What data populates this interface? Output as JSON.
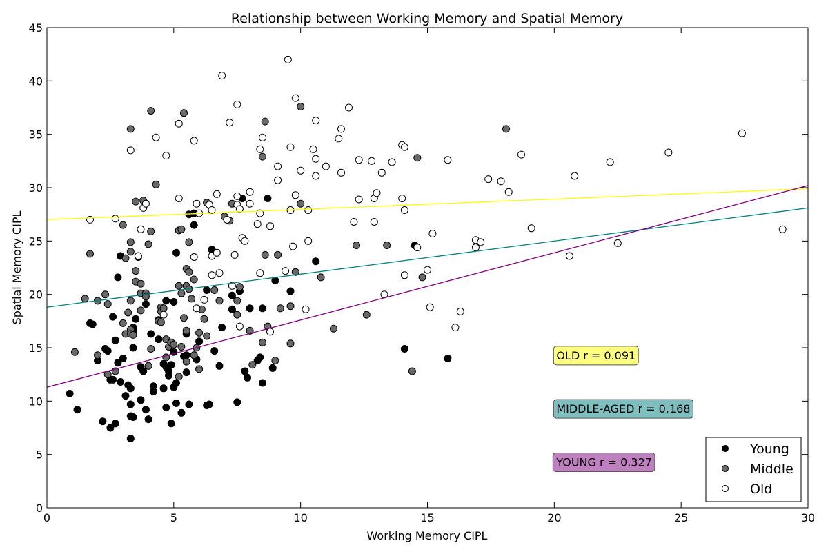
{
  "chart_data": {
    "type": "scatter",
    "title": "Relationship between Working Memory and Spatial Memory",
    "xlabel": "Working Memory CIPL",
    "ylabel": "Spatial Memory CIPL",
    "xlim": [
      0,
      30
    ],
    "ylim": [
      0,
      45
    ],
    "xticks": [
      0,
      5,
      10,
      15,
      20,
      25,
      30
    ],
    "yticks": [
      0,
      5,
      10,
      15,
      20,
      25,
      30,
      35,
      40,
      45
    ],
    "grid": false,
    "legend_position": "bottom-right",
    "series": [
      {
        "name": "Young",
        "color": "#000000",
        "points": [
          [
            0.9,
            10.7
          ],
          [
            1.2,
            9.2
          ],
          [
            1.7,
            17.3
          ],
          [
            1.8,
            17.2
          ],
          [
            2.0,
            13.8
          ],
          [
            2.2,
            8.1
          ],
          [
            2.3,
            14.9
          ],
          [
            2.4,
            14.7
          ],
          [
            2.5,
            12.0
          ],
          [
            2.5,
            7.5
          ],
          [
            2.6,
            17.9
          ],
          [
            2.6,
            12.0
          ],
          [
            2.7,
            7.9
          ],
          [
            2.7,
            15.7
          ],
          [
            2.8,
            21.6
          ],
          [
            2.8,
            13.6
          ],
          [
            2.9,
            23.6
          ],
          [
            2.9,
            11.8
          ],
          [
            3.0,
            14.0
          ],
          [
            3.1,
            10.5
          ],
          [
            3.2,
            11.5
          ],
          [
            3.3,
            11.2
          ],
          [
            3.3,
            9.7
          ],
          [
            3.3,
            8.6
          ],
          [
            3.3,
            6.5
          ],
          [
            3.4,
            8.5
          ],
          [
            3.4,
            16.9
          ],
          [
            3.4,
            16.6
          ],
          [
            3.5,
            17.7
          ],
          [
            3.4,
            15.0
          ],
          [
            3.6,
            23.5
          ],
          [
            3.7,
            13.2
          ],
          [
            3.7,
            10.1
          ],
          [
            3.8,
            12.8
          ],
          [
            3.9,
            19.1
          ],
          [
            3.9,
            9.2
          ],
          [
            4.0,
            8.3
          ],
          [
            4.1,
            16.3
          ],
          [
            4.2,
            10.9
          ],
          [
            4.2,
            11.4
          ],
          [
            4.4,
            15.8
          ],
          [
            4.4,
            17.6
          ],
          [
            4.6,
            13.5
          ],
          [
            4.6,
            11.2
          ],
          [
            4.7,
            19.4
          ],
          [
            4.7,
            13.2
          ],
          [
            4.7,
            9.4
          ],
          [
            4.8,
            12.8
          ],
          [
            4.8,
            12.4
          ],
          [
            4.9,
            13.4
          ],
          [
            4.9,
            7.9
          ],
          [
            5.0,
            19.3
          ],
          [
            5.0,
            14.6
          ],
          [
            5.0,
            11.3
          ],
          [
            5.1,
            11.7
          ],
          [
            5.1,
            9.8
          ],
          [
            5.1,
            23.9
          ],
          [
            5.3,
            8.9
          ],
          [
            5.4,
            14.2
          ],
          [
            5.5,
            14.3
          ],
          [
            5.5,
            12.7
          ],
          [
            5.5,
            16.3
          ],
          [
            5.6,
            27.5
          ],
          [
            5.6,
            9.7
          ],
          [
            5.8,
            27.6
          ],
          [
            5.8,
            26.5
          ],
          [
            5.8,
            14.3
          ],
          [
            5.9,
            13.9
          ],
          [
            6.0,
            15.6
          ],
          [
            6.3,
            20.4
          ],
          [
            6.3,
            9.6
          ],
          [
            6.4,
            9.7
          ],
          [
            6.5,
            24.2
          ],
          [
            6.6,
            14.7
          ],
          [
            6.8,
            13.3
          ],
          [
            6.9,
            16.9
          ],
          [
            7.3,
            18.6
          ],
          [
            7.3,
            19.9
          ],
          [
            7.6,
            20.3
          ],
          [
            7.5,
            9.9
          ],
          [
            7.7,
            29.0
          ],
          [
            7.8,
            12.8
          ],
          [
            7.9,
            12.2
          ],
          [
            8.0,
            18.7
          ],
          [
            8.3,
            13.8
          ],
          [
            8.4,
            14.1
          ],
          [
            8.5,
            18.7
          ],
          [
            8.5,
            11.7
          ],
          [
            8.7,
            29.0
          ],
          [
            8.9,
            13.1
          ],
          [
            9.0,
            21.3
          ],
          [
            9.6,
            20.3
          ],
          [
            10.6,
            23.1
          ],
          [
            14.1,
            14.9
          ],
          [
            14.5,
            24.6
          ],
          [
            15.8,
            14.0
          ]
        ]
      },
      {
        "name": "Middle",
        "color": "#696969",
        "points": [
          [
            1.1,
            14.6
          ],
          [
            1.5,
            19.6
          ],
          [
            1.7,
            23.8
          ],
          [
            2.0,
            19.4
          ],
          [
            2.0,
            14.3
          ],
          [
            2.3,
            20.0
          ],
          [
            2.4,
            12.5
          ],
          [
            2.4,
            19.1
          ],
          [
            2.7,
            12.8
          ],
          [
            3.0,
            17.3
          ],
          [
            3.0,
            26.5
          ],
          [
            3.1,
            23.4
          ],
          [
            3.1,
            16.3
          ],
          [
            3.2,
            18.3
          ],
          [
            3.3,
            16.7
          ],
          [
            3.3,
            16.3
          ],
          [
            3.3,
            19.4
          ],
          [
            3.3,
            24.0
          ],
          [
            3.3,
            24.9
          ],
          [
            3.3,
            35.5
          ],
          [
            3.4,
            16.2
          ],
          [
            3.5,
            28.7
          ],
          [
            3.5,
            22.2
          ],
          [
            3.5,
            21.2
          ],
          [
            3.7,
            21.0
          ],
          [
            3.7,
            20.1
          ],
          [
            3.7,
            18.5
          ],
          [
            3.8,
            28.8
          ],
          [
            3.9,
            20.1
          ],
          [
            3.9,
            19.8
          ],
          [
            4.0,
            13.3
          ],
          [
            4.0,
            24.7
          ],
          [
            4.1,
            25.9
          ],
          [
            4.1,
            14.9
          ],
          [
            4.1,
            37.2
          ],
          [
            4.3,
            30.3
          ],
          [
            4.4,
            17.5
          ],
          [
            4.5,
            17.4
          ],
          [
            4.5,
            18.8
          ],
          [
            4.5,
            18.4
          ],
          [
            4.6,
            18.7
          ],
          [
            4.7,
            14.1
          ],
          [
            4.7,
            15.8
          ],
          [
            4.8,
            15.1
          ],
          [
            4.9,
            15.5
          ],
          [
            5.0,
            15.3
          ],
          [
            5.2,
            12.3
          ],
          [
            5.2,
            26.0
          ],
          [
            5.2,
            20.8
          ],
          [
            5.3,
            26.1
          ],
          [
            5.3,
            15.1
          ],
          [
            5.3,
            20.1
          ],
          [
            5.4,
            17.8
          ],
          [
            5.4,
            37.0
          ],
          [
            5.5,
            16.6
          ],
          [
            5.5,
            22.4
          ],
          [
            5.5,
            20.8
          ],
          [
            5.5,
            13.7
          ],
          [
            5.6,
            22.1
          ],
          [
            5.6,
            20.5
          ],
          [
            5.6,
            24.9
          ],
          [
            5.7,
            19.6
          ],
          [
            5.8,
            21.4
          ],
          [
            5.8,
            14.3
          ],
          [
            5.9,
            15.0
          ],
          [
            6.0,
            16.4
          ],
          [
            6.0,
            13.0
          ],
          [
            6.1,
            18.6
          ],
          [
            6.2,
            17.7
          ],
          [
            6.3,
            28.6
          ],
          [
            6.3,
            16.1
          ],
          [
            6.6,
            20.4
          ],
          [
            6.8,
            19.4
          ],
          [
            7.0,
            27.3
          ],
          [
            7.2,
            26.9
          ],
          [
            7.3,
            28.5
          ],
          [
            7.5,
            19.4
          ],
          [
            7.5,
            18.1
          ],
          [
            7.6,
            20.7
          ],
          [
            8.0,
            16.6
          ],
          [
            8.1,
            13.4
          ],
          [
            8.5,
            32.9
          ],
          [
            8.5,
            15.5
          ],
          [
            8.6,
            23.7
          ],
          [
            8.6,
            36.2
          ],
          [
            8.7,
            17.0
          ],
          [
            9.0,
            13.8
          ],
          [
            9.1,
            23.7
          ],
          [
            9.2,
            18.7
          ],
          [
            9.6,
            18.9
          ],
          [
            9.6,
            15.4
          ],
          [
            9.8,
            22.1
          ],
          [
            10.0,
            37.6
          ],
          [
            10.0,
            28.5
          ],
          [
            10.8,
            21.6
          ],
          [
            11.3,
            16.8
          ],
          [
            12.2,
            24.6
          ],
          [
            12.6,
            18.1
          ],
          [
            13.4,
            24.6
          ],
          [
            14.4,
            12.8
          ],
          [
            14.6,
            32.8
          ],
          [
            14.8,
            21.6
          ],
          [
            18.1,
            35.5
          ]
        ]
      },
      {
        "name": "Old",
        "color": "#ffffff",
        "points": [
          [
            1.7,
            27.0
          ],
          [
            2.7,
            27.1
          ],
          [
            3.3,
            33.5
          ],
          [
            3.6,
            23.6
          ],
          [
            3.7,
            26.1
          ],
          [
            3.8,
            28.1
          ],
          [
            3.9,
            28.5
          ],
          [
            4.3,
            34.7
          ],
          [
            4.6,
            18.1
          ],
          [
            4.7,
            33.0
          ],
          [
            5.2,
            36.0
          ],
          [
            5.2,
            29.0
          ],
          [
            5.8,
            23.5
          ],
          [
            5.8,
            34.4
          ],
          [
            5.9,
            18.7
          ],
          [
            5.9,
            28.5
          ],
          [
            6.0,
            27.6
          ],
          [
            6.2,
            19.5
          ],
          [
            6.4,
            28.4
          ],
          [
            6.5,
            23.6
          ],
          [
            6.5,
            21.8
          ],
          [
            6.5,
            27.9
          ],
          [
            6.7,
            29.4
          ],
          [
            6.7,
            23.9
          ],
          [
            6.8,
            22.0
          ],
          [
            6.9,
            40.5
          ],
          [
            7.1,
            27.0
          ],
          [
            7.2,
            36.1
          ],
          [
            7.3,
            20.8
          ],
          [
            7.5,
            37.8
          ],
          [
            7.5,
            29.2
          ],
          [
            7.4,
            23.7
          ],
          [
            7.5,
            28.4
          ],
          [
            7.6,
            17.0
          ],
          [
            7.6,
            28.0
          ],
          [
            7.7,
            25.3
          ],
          [
            7.8,
            25.0
          ],
          [
            8.0,
            28.5
          ],
          [
            8.0,
            29.6
          ],
          [
            8.3,
            26.6
          ],
          [
            8.4,
            22.0
          ],
          [
            8.4,
            27.6
          ],
          [
            8.4,
            33.6
          ],
          [
            8.5,
            34.7
          ],
          [
            8.8,
            26.4
          ],
          [
            8.8,
            16.5
          ],
          [
            9.1,
            32.0
          ],
          [
            9.1,
            30.7
          ],
          [
            9.4,
            22.2
          ],
          [
            9.5,
            42.0
          ],
          [
            9.6,
            27.9
          ],
          [
            9.6,
            33.8
          ],
          [
            9.7,
            24.5
          ],
          [
            9.8,
            38.4
          ],
          [
            9.8,
            29.3
          ],
          [
            10.0,
            31.6
          ],
          [
            10.2,
            18.6
          ],
          [
            10.3,
            25.0
          ],
          [
            10.3,
            27.9
          ],
          [
            10.5,
            33.6
          ],
          [
            10.6,
            32.7
          ],
          [
            10.6,
            36.3
          ],
          [
            10.6,
            31.1
          ],
          [
            11.0,
            32.0
          ],
          [
            11.5,
            34.6
          ],
          [
            11.6,
            35.5
          ],
          [
            11.6,
            31.4
          ],
          [
            11.9,
            37.5
          ],
          [
            12.1,
            26.8
          ],
          [
            12.3,
            28.9
          ],
          [
            12.3,
            32.6
          ],
          [
            12.8,
            32.5
          ],
          [
            12.9,
            26.8
          ],
          [
            12.9,
            29.0
          ],
          [
            13.0,
            29.5
          ],
          [
            13.2,
            31.4
          ],
          [
            13.3,
            20.0
          ],
          [
            13.6,
            32.4
          ],
          [
            14.0,
            34.0
          ],
          [
            14.0,
            29.0
          ],
          [
            14.1,
            27.9
          ],
          [
            14.1,
            33.8
          ],
          [
            14.1,
            21.8
          ],
          [
            14.6,
            24.4
          ],
          [
            15.0,
            22.3
          ],
          [
            15.1,
            18.8
          ],
          [
            15.2,
            25.7
          ],
          [
            15.8,
            32.6
          ],
          [
            16.1,
            16.9
          ],
          [
            16.3,
            18.4
          ],
          [
            16.9,
            25.1
          ],
          [
            16.9,
            24.4
          ],
          [
            17.1,
            24.9
          ],
          [
            17.4,
            30.8
          ],
          [
            17.9,
            30.6
          ],
          [
            18.2,
            29.6
          ],
          [
            18.7,
            33.1
          ],
          [
            19.1,
            26.2
          ],
          [
            20.6,
            23.6
          ],
          [
            20.8,
            31.1
          ],
          [
            22.2,
            32.4
          ],
          [
            22.5,
            24.8
          ],
          [
            24.5,
            33.3
          ],
          [
            27.4,
            35.1
          ],
          [
            29.0,
            26.1
          ]
        ]
      }
    ],
    "fit_lines": [
      {
        "group": "Old",
        "color": "#ffff00",
        "x": [
          0,
          30
        ],
        "y": [
          27.0,
          29.9
        ]
      },
      {
        "group": "Middle",
        "color": "#008080",
        "x": [
          0,
          30
        ],
        "y": [
          18.8,
          28.1
        ]
      },
      {
        "group": "Young",
        "color": "#800080",
        "x": [
          0,
          30
        ],
        "y": [
          11.3,
          30.2
        ]
      }
    ],
    "annotations": [
      {
        "text": "OLD r = 0.091",
        "x": 20.0,
        "y": 14.3,
        "color": "#ffff80"
      },
      {
        "text": "MIDDLE-AGED r = 0.168",
        "x": 20.0,
        "y": 9.3,
        "color": "#80bfbf"
      },
      {
        "text": "YOUNG r = 0.327",
        "x": 20.0,
        "y": 4.3,
        "color": "#bf80bf"
      }
    ]
  }
}
